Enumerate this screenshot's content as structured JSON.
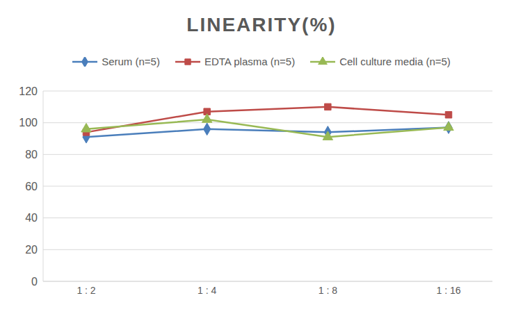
{
  "chart_data": {
    "type": "line",
    "title": "LINEARITY(%)",
    "categories": [
      "1 : 2",
      "1 : 4",
      "1 : 8",
      "1 : 16"
    ],
    "series": [
      {
        "name": "Serum (n=5)",
        "color": "#4a7ebb",
        "marker": "diamond",
        "values": [
          91,
          96,
          94,
          97
        ]
      },
      {
        "name": "EDTA plasma (n=5)",
        "color": "#be4b48",
        "marker": "square",
        "values": [
          94,
          107,
          110,
          105
        ]
      },
      {
        "name": "Cell culture media (n=5)",
        "color": "#98b954",
        "marker": "triangle",
        "values": [
          96,
          102,
          91,
          97
        ]
      }
    ],
    "ylim": [
      0,
      120
    ],
    "yticks": [
      0,
      20,
      40,
      60,
      80,
      100,
      120
    ],
    "grid": true,
    "legend": "top"
  }
}
